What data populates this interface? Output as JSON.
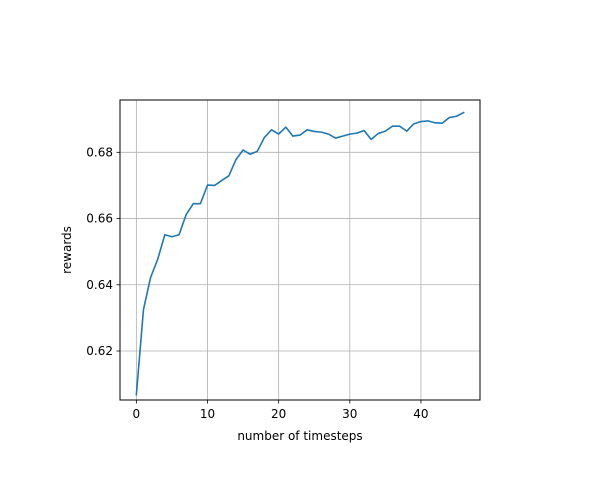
{
  "chart_data": {
    "type": "line",
    "title": "",
    "xlabel": "number of timesteps",
    "ylabel": "rewards",
    "xlim": [
      -2.3,
      48.3
    ],
    "ylim": [
      0.6052,
      0.6958
    ],
    "xticks": [
      0,
      10,
      20,
      30,
      40
    ],
    "yticks": [
      0.62,
      0.64,
      0.66,
      0.68
    ],
    "grid": true,
    "legend": "none",
    "series": [
      {
        "color": "#1f77b4",
        "x": [
          0,
          1,
          2,
          3,
          4,
          5,
          6,
          7,
          8,
          9,
          10,
          11,
          12,
          13,
          14,
          15,
          16,
          17,
          18,
          19,
          20,
          21,
          22,
          23,
          24,
          25,
          26,
          27,
          28,
          29,
          30,
          31,
          32,
          33,
          34,
          35,
          36,
          37,
          38,
          39,
          40,
          41,
          42,
          43,
          44,
          45,
          46
        ],
        "y": [
          0.6068,
          0.6325,
          0.6422,
          0.6477,
          0.6551,
          0.6545,
          0.6551,
          0.6612,
          0.6645,
          0.6645,
          0.6701,
          0.67,
          0.6715,
          0.6729,
          0.6778,
          0.6807,
          0.6794,
          0.6803,
          0.6845,
          0.6868,
          0.6855,
          0.6876,
          0.6849,
          0.6852,
          0.6868,
          0.6863,
          0.6861,
          0.6855,
          0.6843,
          0.6849,
          0.6855,
          0.6858,
          0.6866,
          0.6839,
          0.6857,
          0.6864,
          0.6879,
          0.6879,
          0.6864,
          0.6886,
          0.6893,
          0.6895,
          0.6889,
          0.6888,
          0.6905,
          0.6909,
          0.692
        ]
      }
    ]
  }
}
